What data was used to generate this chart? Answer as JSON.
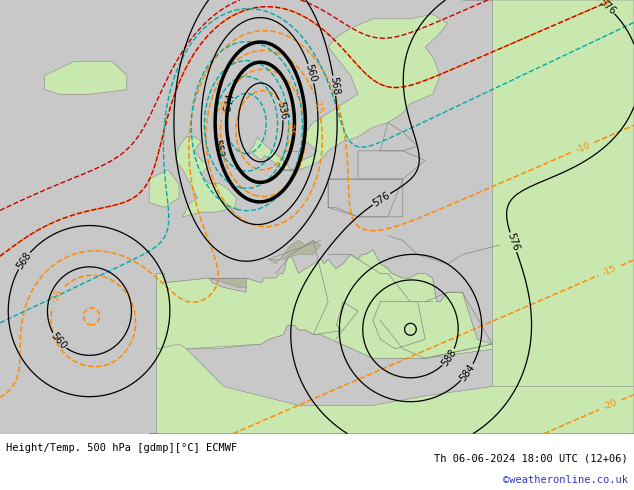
{
  "title_left": "Height/Temp. 500 hPa [gdmp][°C] ECMWF",
  "title_right": "Th 06-06-2024 18:00 UTC (12+06)",
  "watermark": "©weatheronline.co.uk",
  "bg_color_ocean": "#c8c8c8",
  "bg_color_land": "#c8e8b0",
  "bg_color_mountain": "#a8a8a8",
  "color_z500": "#000000",
  "color_temp_neg": "#ff8c00",
  "color_temp_pos_green": "#44aa00",
  "color_temp_pos_red": "#cc0000",
  "color_z850": "#00aaaa",
  "figsize": [
    6.34,
    4.9
  ],
  "dpi": 100,
  "lon_min": -30,
  "lon_max": 55,
  "lat_min": 27,
  "lat_max": 73
}
